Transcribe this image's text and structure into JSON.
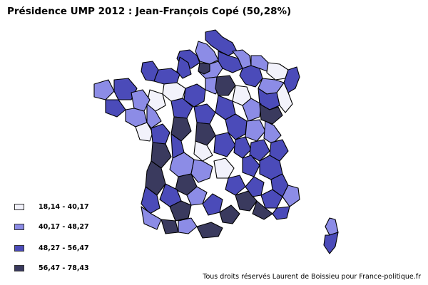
{
  "title": "Présidence UMP 2012 : Jean-François Copé (50,28%)",
  "legend": [
    {
      "label": "18,14 - 40,17",
      "color": "#f2f2fb"
    },
    {
      "label": "40,17 - 48,27",
      "color": "#8c8ce6"
    },
    {
      "label": "48,27 - 56,47",
      "color": "#4b4bb9"
    },
    {
      "label": "56,47 - 78,43",
      "color": "#3a3a5e"
    }
  ],
  "credit": "Tous droits réservés Laurent de Boissieu pour France-politique.fr",
  "colors": {
    "outline": "#000000",
    "background": "#ffffff"
  }
}
